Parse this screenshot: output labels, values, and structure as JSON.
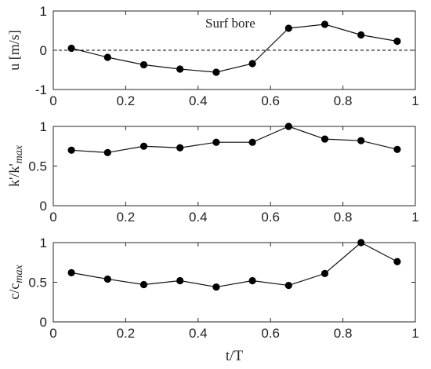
{
  "chart_data": [
    {
      "type": "line",
      "annotation": "Surf bore",
      "ylabel_main": "u [m/s]",
      "ylabel_sub": "",
      "xlabel": "",
      "xlim": [
        0,
        1
      ],
      "ylim": [
        -1,
        1
      ],
      "xticks": [
        0,
        0.2,
        0.4,
        0.6,
        0.8,
        1
      ],
      "yticks": [
        -1,
        0,
        1
      ],
      "zero_line": true,
      "x": [
        0.05,
        0.15,
        0.25,
        0.35,
        0.45,
        0.55,
        0.65,
        0.75,
        0.85,
        0.95
      ],
      "y": [
        0.05,
        -0.18,
        -0.37,
        -0.48,
        -0.56,
        -0.34,
        0.56,
        0.66,
        0.39,
        0.23
      ]
    },
    {
      "type": "line",
      "annotation": "",
      "ylabel_main": "k'/k'",
      "ylabel_sub": "max",
      "xlabel": "",
      "xlim": [
        0,
        1
      ],
      "ylim": [
        0,
        1
      ],
      "xticks": [
        0,
        0.2,
        0.4,
        0.6,
        0.8,
        1
      ],
      "yticks": [
        0,
        0.5,
        1
      ],
      "zero_line": false,
      "x": [
        0.05,
        0.15,
        0.25,
        0.35,
        0.45,
        0.55,
        0.65,
        0.75,
        0.85,
        0.95
      ],
      "y": [
        0.7,
        0.67,
        0.75,
        0.73,
        0.8,
        0.8,
        1.0,
        0.84,
        0.82,
        0.71
      ]
    },
    {
      "type": "line",
      "annotation": "",
      "ylabel_main": "c/c",
      "ylabel_sub": "max",
      "xlabel": "t/T",
      "xlim": [
        0,
        1
      ],
      "ylim": [
        0,
        1
      ],
      "xticks": [
        0,
        0.2,
        0.4,
        0.6,
        0.8,
        1
      ],
      "yticks": [
        0,
        0.5,
        1
      ],
      "zero_line": false,
      "x": [
        0.05,
        0.15,
        0.25,
        0.35,
        0.45,
        0.55,
        0.65,
        0.75,
        0.85,
        0.95
      ],
      "y": [
        0.62,
        0.54,
        0.47,
        0.52,
        0.44,
        0.52,
        0.46,
        0.61,
        1.0,
        0.76
      ]
    }
  ]
}
